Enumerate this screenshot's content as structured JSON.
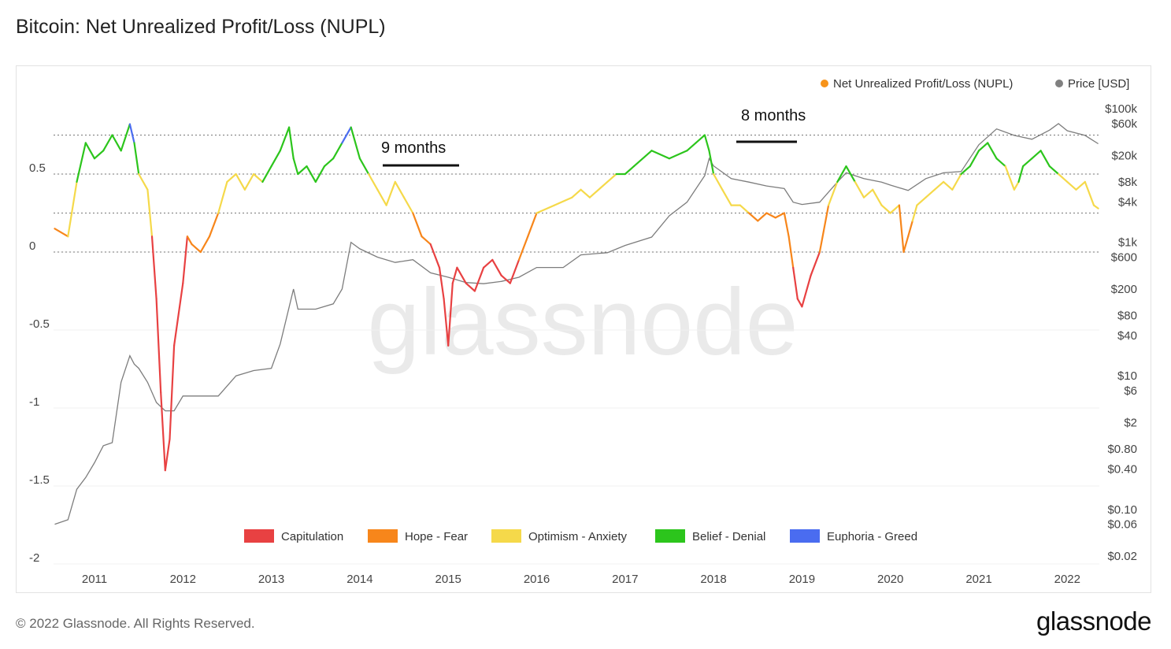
{
  "title": "Bitcoin: Net Unrealized Profit/Loss (NUPL)",
  "footer": "© 2022 Glassnode. All Rights Reserved.",
  "brand": "glassnode",
  "watermark": "glassnode",
  "chart_data": {
    "type": "line",
    "title": "Bitcoin: Net Unrealized Profit/Loss (NUPL)",
    "x_ticks": [
      "2011",
      "2012",
      "2013",
      "2014",
      "2015",
      "2016",
      "2017",
      "2018",
      "2019",
      "2020",
      "2021",
      "2022"
    ],
    "xlim": [
      2010.55,
      2022.35
    ],
    "y_left_ticks": [
      "0.5",
      "0",
      "-0.5",
      "-1",
      "-1.5",
      "-2"
    ],
    "y_left_tick_values": [
      0.5,
      0,
      -0.5,
      -1,
      -1.5,
      -2
    ],
    "ylim_left": [
      -2,
      1
    ],
    "y_right_ticks": [
      "$100k",
      "$60k",
      "$20k",
      "$8k",
      "$4k",
      "$1k",
      "$600",
      "$200",
      "$80",
      "$40",
      "$10",
      "$6",
      "$2",
      "$0.80",
      "$0.40",
      "$0.10",
      "$0.06",
      "$0.02"
    ],
    "y_right_tick_values": [
      100000,
      60000,
      20000,
      8000,
      4000,
      1000,
      600,
      200,
      80,
      40,
      10,
      6,
      2,
      0.8,
      0.4,
      0.1,
      0.06,
      0.02
    ],
    "y_right_scale": "log",
    "series_legend": [
      {
        "name": "Net Unrealized Profit/Loss (NUPL)",
        "color": "#f7931a"
      },
      {
        "name": "Price [USD]",
        "color": "#808080"
      }
    ],
    "zones_legend": [
      {
        "name": "Capitulation",
        "color": "#e84142"
      },
      {
        "name": "Hope - Fear",
        "color": "#f7861b"
      },
      {
        "name": "Optimism - Anxiety",
        "color": "#f5d94a"
      },
      {
        "name": "Belief - Denial",
        "color": "#2cc51c"
      },
      {
        "name": "Euphoria - Greed",
        "color": "#4a6cf0"
      }
    ],
    "zone_thresholds": [
      0,
      0.25,
      0.5,
      0.75
    ],
    "nupl": {
      "x": [
        2010.55,
        2010.7,
        2010.8,
        2010.9,
        2011.0,
        2011.1,
        2011.2,
        2011.3,
        2011.4,
        2011.45,
        2011.5,
        2011.6,
        2011.65,
        2011.7,
        2011.75,
        2011.8,
        2011.85,
        2011.9,
        2012.0,
        2012.05,
        2012.1,
        2012.2,
        2012.3,
        2012.4,
        2012.5,
        2012.6,
        2012.7,
        2012.8,
        2012.9,
        2013.0,
        2013.1,
        2013.2,
        2013.25,
        2013.3,
        2013.4,
        2013.5,
        2013.6,
        2013.7,
        2013.8,
        2013.9,
        2014.0,
        2014.1,
        2014.2,
        2014.3,
        2014.4,
        2014.5,
        2014.6,
        2014.7,
        2014.8,
        2014.9,
        2014.95,
        2015.0,
        2015.05,
        2015.1,
        2015.2,
        2015.3,
        2015.4,
        2015.5,
        2015.6,
        2015.7,
        2015.8,
        2015.9,
        2016.0,
        2016.2,
        2016.4,
        2016.5,
        2016.6,
        2016.8,
        2016.9,
        2017.0,
        2017.1,
        2017.3,
        2017.5,
        2017.7,
        2017.8,
        2017.9,
        2017.95,
        2018.0,
        2018.1,
        2018.2,
        2018.3,
        2018.4,
        2018.5,
        2018.6,
        2018.7,
        2018.8,
        2018.85,
        2018.9,
        2018.95,
        2019.0,
        2019.1,
        2019.2,
        2019.3,
        2019.4,
        2019.5,
        2019.6,
        2019.7,
        2019.8,
        2019.9,
        2020.0,
        2020.1,
        2020.15,
        2020.2,
        2020.25,
        2020.3,
        2020.4,
        2020.5,
        2020.6,
        2020.7,
        2020.8,
        2020.9,
        2021.0,
        2021.1,
        2021.2,
        2021.3,
        2021.4,
        2021.45,
        2021.5,
        2021.6,
        2021.7,
        2021.8,
        2021.9,
        2022.0,
        2022.1,
        2022.2,
        2022.3,
        2022.35
      ],
      "y": [
        0.15,
        0.1,
        0.45,
        0.7,
        0.6,
        0.65,
        0.75,
        0.65,
        0.82,
        0.7,
        0.5,
        0.4,
        0.1,
        -0.3,
        -0.9,
        -1.4,
        -1.2,
        -0.6,
        -0.2,
        0.1,
        0.05,
        0.0,
        0.1,
        0.25,
        0.45,
        0.5,
        0.4,
        0.5,
        0.45,
        0.55,
        0.65,
        0.8,
        0.6,
        0.5,
        0.55,
        0.45,
        0.55,
        0.6,
        0.7,
        0.8,
        0.6,
        0.5,
        0.4,
        0.3,
        0.45,
        0.35,
        0.25,
        0.1,
        0.05,
        -0.1,
        -0.3,
        -0.6,
        -0.2,
        -0.1,
        -0.2,
        -0.25,
        -0.1,
        -0.05,
        -0.15,
        -0.2,
        -0.05,
        0.1,
        0.25,
        0.3,
        0.35,
        0.4,
        0.35,
        0.45,
        0.5,
        0.5,
        0.55,
        0.65,
        0.6,
        0.65,
        0.7,
        0.75,
        0.65,
        0.5,
        0.4,
        0.3,
        0.3,
        0.25,
        0.2,
        0.25,
        0.22,
        0.25,
        0.1,
        -0.1,
        -0.3,
        -0.35,
        -0.15,
        0.0,
        0.3,
        0.45,
        0.55,
        0.45,
        0.35,
        0.4,
        0.3,
        0.25,
        0.3,
        0.0,
        0.1,
        0.2,
        0.3,
        0.35,
        0.4,
        0.45,
        0.4,
        0.5,
        0.55,
        0.65,
        0.7,
        0.6,
        0.55,
        0.4,
        0.45,
        0.55,
        0.6,
        0.65,
        0.55,
        0.5,
        0.45,
        0.4,
        0.45,
        0.3,
        0.28
      ]
    },
    "price": {
      "x": [
        2010.55,
        2010.7,
        2010.8,
        2010.9,
        2011.0,
        2011.1,
        2011.2,
        2011.3,
        2011.4,
        2011.45,
        2011.5,
        2011.6,
        2011.7,
        2011.8,
        2011.9,
        2012.0,
        2012.2,
        2012.4,
        2012.6,
        2012.8,
        2013.0,
        2013.1,
        2013.25,
        2013.3,
        2013.5,
        2013.7,
        2013.8,
        2013.9,
        2014.0,
        2014.2,
        2014.4,
        2014.6,
        2014.8,
        2015.0,
        2015.2,
        2015.4,
        2015.6,
        2015.8,
        2016.0,
        2016.3,
        2016.5,
        2016.8,
        2017.0,
        2017.3,
        2017.5,
        2017.7,
        2017.9,
        2017.95,
        2018.0,
        2018.2,
        2018.4,
        2018.6,
        2018.8,
        2018.9,
        2019.0,
        2019.2,
        2019.4,
        2019.5,
        2019.7,
        2019.9,
        2020.0,
        2020.2,
        2020.4,
        2020.6,
        2020.8,
        2021.0,
        2021.2,
        2021.4,
        2021.6,
        2021.8,
        2021.9,
        2022.0,
        2022.2,
        2022.35
      ],
      "y": [
        0.06,
        0.07,
        0.2,
        0.3,
        0.5,
        0.9,
        1.0,
        8,
        20,
        15,
        13,
        8,
        4,
        3,
        3,
        5,
        5,
        5,
        10,
        12,
        13,
        30,
        200,
        100,
        100,
        120,
        200,
        1000,
        800,
        600,
        500,
        550,
        350,
        300,
        250,
        240,
        260,
        300,
        420,
        420,
        650,
        700,
        900,
        1200,
        2500,
        4000,
        10000,
        18000,
        14000,
        9000,
        8000,
        7000,
        6400,
        4000,
        3700,
        4000,
        8000,
        11000,
        9000,
        8000,
        7200,
        6000,
        9000,
        11000,
        11500,
        29000,
        50000,
        40000,
        35000,
        48000,
        60000,
        47000,
        40000,
        30000
      ]
    }
  }
}
